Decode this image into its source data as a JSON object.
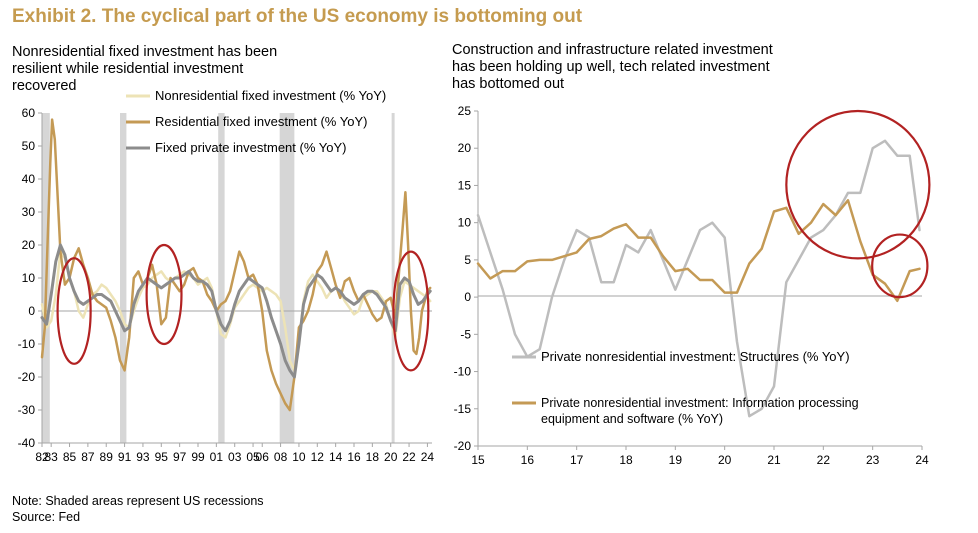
{
  "exhibit_title": "Exhibit 2. The cyclical part of the US economy is bottoming out",
  "footnotes": {
    "note": "Note: Shaded areas represent US recessions",
    "source": "Source: Fed"
  },
  "colors": {
    "title": "#c59b4f",
    "nonres": "#ede3b6",
    "residential": "#c49a55",
    "fixed_private": "#8c8c8c",
    "structures": "#bdbdbd",
    "info": "#c49a55",
    "recession": "#d6d6d6",
    "circle": "#b22222",
    "axis": "#a6a6a6"
  },
  "chart_data": [
    {
      "type": "line",
      "title_lines": [
        "Nonresidential fixed investment has been",
        "resilient while residential investment",
        "recovered"
      ],
      "xlabel": "",
      "ylabel": "",
      "xlim": [
        1982,
        2024.5
      ],
      "ylim": [
        -40,
        60
      ],
      "yticks": [
        -40,
        -30,
        -20,
        -10,
        0,
        10,
        20,
        30,
        40,
        50,
        60
      ],
      "xtick_values": [
        1982,
        1983,
        1985,
        1987,
        1989,
        1991,
        1993,
        1995,
        1997,
        1999,
        2001,
        2003,
        2005,
        2006,
        2008,
        2010,
        2012,
        2014,
        2016,
        2018,
        2020,
        2022,
        2024
      ],
      "xtick_labels": [
        "82",
        "83",
        "85",
        "87",
        "89",
        "91",
        "93",
        "95",
        "97",
        "99",
        "01",
        "03",
        "05",
        "06",
        "08",
        "10",
        "12",
        "14",
        "16",
        "18",
        "20",
        "22",
        "24"
      ],
      "legend_position": "top-right",
      "recessions": [
        [
          1982.0,
          1982.85
        ],
        [
          1990.5,
          1991.2
        ],
        [
          2001.2,
          2001.9
        ],
        [
          2007.9,
          2009.5
        ],
        [
          2020.1,
          2020.4
        ]
      ],
      "highlights": [
        {
          "cx": 1985.5,
          "cy": 0,
          "rx": 1.8,
          "ry": 16
        },
        {
          "cx": 1995.3,
          "cy": 5,
          "rx": 1.9,
          "ry": 15
        },
        {
          "cx": 2022.2,
          "cy": 0,
          "rx": 1.9,
          "ry": 18
        }
      ],
      "series": [
        {
          "name": "Nonresidential fixed investment (% YoY)",
          "color_key": "nonres",
          "x": [
            1982.0,
            1982.5,
            1983.0,
            1983.5,
            1984.0,
            1984.5,
            1985.0,
            1985.5,
            1986.0,
            1986.5,
            1987.0,
            1987.5,
            1988.0,
            1988.5,
            1989.0,
            1989.5,
            1990.0,
            1990.5,
            1991.0,
            1991.5,
            1992.0,
            1992.5,
            1993.0,
            1993.5,
            1994.0,
            1994.5,
            1995.0,
            1995.5,
            1996.0,
            1996.5,
            1997.0,
            1997.5,
            1998.0,
            1998.5,
            1999.0,
            1999.5,
            2000.0,
            2000.5,
            2001.0,
            2001.5,
            2002.0,
            2002.5,
            2003.0,
            2003.5,
            2004.0,
            2004.5,
            2005.0,
            2005.5,
            2006.0,
            2006.5,
            2007.0,
            2007.5,
            2008.0,
            2008.5,
            2009.0,
            2009.5,
            2010.0,
            2010.5,
            2011.0,
            2011.5,
            2012.0,
            2012.5,
            2013.0,
            2013.5,
            2014.0,
            2014.5,
            2015.0,
            2015.5,
            2016.0,
            2016.5,
            2017.0,
            2017.5,
            2018.0,
            2018.5,
            2019.0,
            2019.5,
            2020.0,
            2020.5,
            2021.0,
            2021.5,
            2022.0,
            2022.5,
            2023.0,
            2023.5,
            2024.0,
            2024.3
          ],
          "values": [
            2,
            -5,
            -3,
            5,
            18,
            16,
            10,
            6,
            0,
            -2,
            2,
            5,
            6,
            8,
            7,
            5,
            3,
            0,
            -4,
            -5,
            0,
            4,
            7,
            8,
            10,
            11,
            12,
            10,
            9,
            10,
            11,
            12,
            11,
            10,
            8,
            9,
            10,
            7,
            0,
            -7,
            -8,
            -4,
            1,
            3,
            5,
            7,
            8,
            7,
            6,
            7,
            6,
            5,
            3,
            -5,
            -15,
            -18,
            -10,
            3,
            9,
            11,
            9,
            7,
            4,
            6,
            7,
            6,
            3,
            1,
            -1,
            0,
            4,
            5,
            6,
            6,
            4,
            2,
            -3,
            -8,
            4,
            9,
            8,
            7,
            6,
            5,
            4,
            3
          ]
        },
        {
          "name": "Residential fixed investment (% YoY)",
          "color_key": "residential",
          "x": [
            1982.0,
            1982.3,
            1982.6,
            1982.9,
            1983.1,
            1983.4,
            1983.7,
            1984.0,
            1984.5,
            1985.0,
            1985.5,
            1986.0,
            1986.5,
            1987.0,
            1987.5,
            1988.0,
            1988.5,
            1989.0,
            1989.5,
            1990.0,
            1990.5,
            1991.0,
            1991.5,
            1992.0,
            1992.5,
            1993.0,
            1993.5,
            1994.0,
            1994.5,
            1995.0,
            1995.5,
            1996.0,
            1996.5,
            1997.0,
            1997.5,
            1998.0,
            1998.5,
            1999.0,
            1999.5,
            2000.0,
            2000.5,
            2001.0,
            2001.5,
            2002.0,
            2002.5,
            2003.0,
            2003.5,
            2004.0,
            2004.5,
            2005.0,
            2005.5,
            2006.0,
            2006.5,
            2007.0,
            2007.5,
            2008.0,
            2008.5,
            2009.0,
            2009.5,
            2010.0,
            2010.5,
            2011.0,
            2011.5,
            2012.0,
            2012.5,
            2013.0,
            2013.5,
            2014.0,
            2014.5,
            2015.0,
            2015.5,
            2016.0,
            2016.5,
            2017.0,
            2017.5,
            2018.0,
            2018.5,
            2019.0,
            2019.5,
            2020.0,
            2020.5,
            2021.0,
            2021.3,
            2021.6,
            2021.9,
            2022.2,
            2022.5,
            2022.8,
            2023.1,
            2023.4,
            2023.7,
            2024.0,
            2024.3
          ],
          "values": [
            -14,
            -5,
            20,
            45,
            58,
            52,
            35,
            18,
            8,
            10,
            16,
            19,
            14,
            10,
            5,
            3,
            2,
            1,
            -3,
            -8,
            -15,
            -18,
            -8,
            10,
            12,
            8,
            10,
            14,
            8,
            -4,
            -2,
            10,
            8,
            6,
            8,
            12,
            13,
            10,
            9,
            5,
            3,
            0,
            2,
            3,
            6,
            12,
            18,
            15,
            10,
            11,
            8,
            0,
            -12,
            -18,
            -22,
            -25,
            -28,
            -30,
            -20,
            -5,
            -3,
            0,
            5,
            12,
            14,
            18,
            13,
            8,
            4,
            9,
            10,
            6,
            3,
            5,
            2,
            -1,
            -3,
            -2,
            3,
            4,
            -2,
            15,
            25,
            36,
            20,
            0,
            -12,
            -13,
            -8,
            0,
            3,
            6,
            7
          ]
        },
        {
          "name": "Fixed private investment (% YoY)",
          "color_key": "fixed_private",
          "x": [
            1982.0,
            1982.5,
            1983.0,
            1983.5,
            1984.0,
            1984.5,
            1985.0,
            1985.5,
            1986.0,
            1986.5,
            1987.0,
            1987.5,
            1988.0,
            1988.5,
            1989.0,
            1989.5,
            1990.0,
            1990.5,
            1991.0,
            1991.5,
            1992.0,
            1992.5,
            1993.0,
            1993.5,
            1994.0,
            1994.5,
            1995.0,
            1995.5,
            1996.0,
            1996.5,
            1997.0,
            1997.5,
            1998.0,
            1998.5,
            1999.0,
            1999.5,
            2000.0,
            2000.5,
            2001.0,
            2001.5,
            2002.0,
            2002.5,
            2003.0,
            2003.5,
            2004.0,
            2004.5,
            2005.0,
            2005.5,
            2006.0,
            2006.5,
            2007.0,
            2007.5,
            2008.0,
            2008.5,
            2009.0,
            2009.5,
            2010.0,
            2010.5,
            2011.0,
            2011.5,
            2012.0,
            2012.5,
            2013.0,
            2013.5,
            2014.0,
            2014.5,
            2015.0,
            2015.5,
            2016.0,
            2016.5,
            2017.0,
            2017.5,
            2018.0,
            2018.5,
            2019.0,
            2019.5,
            2020.0,
            2020.5,
            2021.0,
            2021.5,
            2022.0,
            2022.5,
            2023.0,
            2023.5,
            2024.0,
            2024.3
          ],
          "values": [
            -2,
            -4,
            5,
            15,
            20,
            17,
            10,
            6,
            3,
            2,
            3,
            4,
            5,
            5,
            4,
            3,
            0,
            -3,
            -6,
            -5,
            2,
            6,
            8,
            10,
            9,
            8,
            7,
            8,
            9,
            10,
            10,
            11,
            12,
            10,
            9,
            9,
            8,
            6,
            0,
            -4,
            -6,
            -3,
            2,
            6,
            8,
            10,
            9,
            8,
            7,
            3,
            -2,
            -6,
            -10,
            -15,
            -18,
            -20,
            -10,
            2,
            7,
            9,
            11,
            10,
            8,
            6,
            7,
            6,
            4,
            3,
            2,
            3,
            5,
            6,
            6,
            5,
            3,
            1,
            -3,
            -6,
            8,
            10,
            9,
            5,
            2,
            3,
            5,
            6
          ]
        }
      ]
    },
    {
      "type": "line",
      "title_lines": [
        "Construction and infrastructure related investment",
        "has been holding up well, tech related investment",
        "has bottomed out"
      ],
      "xlabel": "",
      "ylabel": "",
      "xlim": [
        2015,
        2024
      ],
      "ylim": [
        -20,
        25
      ],
      "yticks": [
        -20,
        -15,
        -10,
        -5,
        0,
        5,
        10,
        15,
        20,
        25
      ],
      "xtick_values": [
        2015,
        2016,
        2017,
        2018,
        2019,
        2020,
        2021,
        2022,
        2023,
        2024
      ],
      "xtick_labels": [
        "15",
        "16",
        "17",
        "18",
        "19",
        "20",
        "21",
        "22",
        "23",
        "24"
      ],
      "legend_position": "bottom-right",
      "highlights": [
        {
          "cx": 2022.7,
          "cy": 15.1,
          "rx": 1.45,
          "ry": 9.9
        },
        {
          "cx": 2023.55,
          "cy": 4.2,
          "rx": 0.56,
          "ry": 4.2
        }
      ],
      "series": [
        {
          "name": "Private nonresidential investment: Structures (% YoY)",
          "color_key": "structures",
          "x": [
            2015.0,
            2015.25,
            2015.5,
            2015.75,
            2016.0,
            2016.25,
            2016.5,
            2016.75,
            2017.0,
            2017.25,
            2017.5,
            2017.75,
            2018.0,
            2018.25,
            2018.5,
            2018.75,
            2019.0,
            2019.25,
            2019.5,
            2019.75,
            2020.0,
            2020.25,
            2020.5,
            2020.75,
            2021.0,
            2021.25,
            2021.5,
            2021.75,
            2022.0,
            2022.25,
            2022.5,
            2022.75,
            2023.0,
            2023.25,
            2023.5,
            2023.75,
            2023.95
          ],
          "values": [
            11,
            6,
            1,
            -5,
            -8,
            -7,
            0,
            5,
            9,
            8,
            2,
            2,
            7,
            6,
            9,
            5,
            1,
            5,
            9,
            10,
            8,
            -6,
            -16,
            -15,
            -12,
            2,
            5,
            8,
            9,
            11,
            14,
            14,
            20,
            21,
            19,
            19,
            9
          ]
        },
        {
          "name_lines": [
            "Private nonresidential investment: Information processing",
            "equipment and software (% YoY)"
          ],
          "name": "Private nonresidential investment: Information processing equipment and software (% YoY)",
          "color_key": "info",
          "x": [
            2015.0,
            2015.25,
            2015.5,
            2015.75,
            2016.0,
            2016.25,
            2016.5,
            2016.75,
            2017.0,
            2017.25,
            2017.5,
            2017.75,
            2018.0,
            2018.25,
            2018.5,
            2018.75,
            2019.0,
            2019.25,
            2019.5,
            2019.75,
            2020.0,
            2020.25,
            2020.5,
            2020.75,
            2021.0,
            2021.25,
            2021.5,
            2021.75,
            2022.0,
            2022.25,
            2022.5,
            2022.75,
            2023.0,
            2023.25,
            2023.5,
            2023.75,
            2023.95
          ],
          "values": [
            4.5,
            2.5,
            3.5,
            3.5,
            4.8,
            5.0,
            5.0,
            5.5,
            6.0,
            7.8,
            8.2,
            9.2,
            9.8,
            8.0,
            8.0,
            5.5,
            3.5,
            3.8,
            2.3,
            2.3,
            0.6,
            0.6,
            4.5,
            6.5,
            11.5,
            12.0,
            8.5,
            10.0,
            12.5,
            11.0,
            13.0,
            7.5,
            3.0,
            1.8,
            -0.5,
            3.5,
            3.8
          ]
        }
      ]
    }
  ]
}
